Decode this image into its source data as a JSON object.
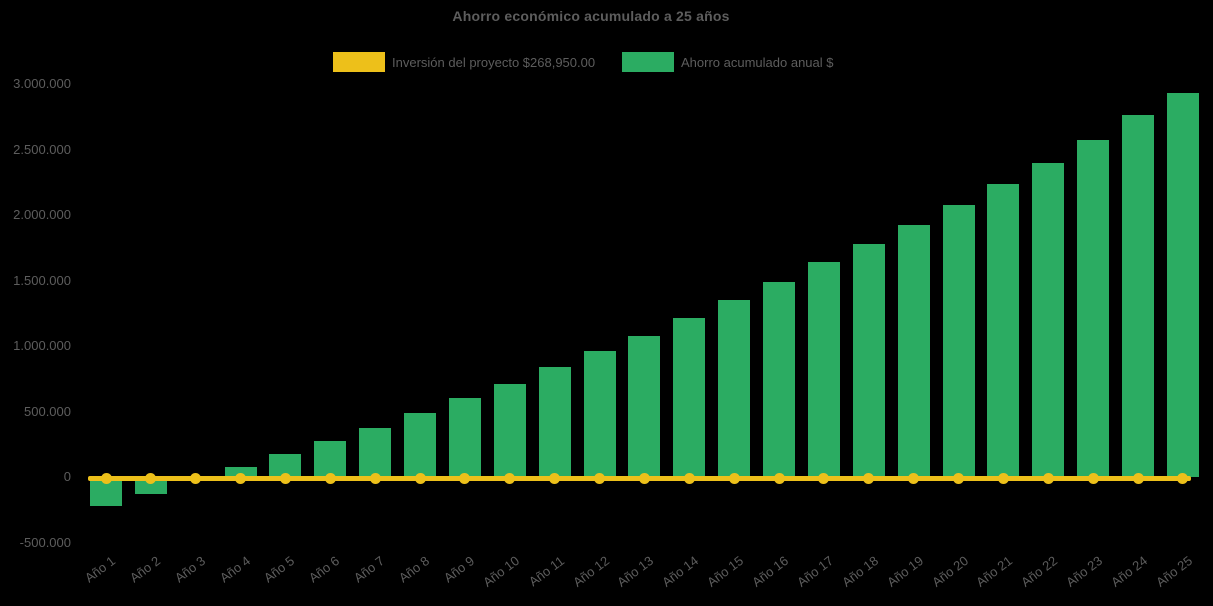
{
  "chart_data": {
    "type": "bar",
    "title": "Ahorro económico acumulado a 25 años",
    "categories": [
      "Año 1",
      "Año 2",
      "Año 3",
      "Año 4",
      "Año 5",
      "Año 6",
      "Año 7",
      "Año 8",
      "Año 9",
      "Año 10",
      "Año 11",
      "Año 12",
      "Año 13",
      "Año 14",
      "Año 15",
      "Año 16",
      "Año 17",
      "Año 18",
      "Año 19",
      "Año 20",
      "Año 21",
      "Año 22",
      "Año 23",
      "Año 24",
      "Año 25"
    ],
    "series": [
      {
        "name": "Inversión del proyecto $268,950.00",
        "type": "line",
        "color": "#edc01a",
        "marker": "circle",
        "plotted_value": 0,
        "stated_value_label": "$268,950.00"
      },
      {
        "name": "Ahorro acumulado anual $",
        "type": "bar",
        "color": "#2bac62",
        "values": [
          -215000,
          -130000,
          -25000,
          80000,
          180000,
          280000,
          380000,
          490000,
          605000,
          715000,
          840000,
          965000,
          1080000,
          1215000,
          1350000,
          1490000,
          1645000,
          1780000,
          1925000,
          2080000,
          2240000,
          2400000,
          2575000,
          2765000,
          2935000
        ]
      }
    ],
    "xlabel": "",
    "ylabel": "",
    "ylim": [
      -500000,
      3000000
    ],
    "y_ticks": [
      {
        "label": "3.000.000",
        "value": 3000000
      },
      {
        "label": "2.500.000",
        "value": 2500000
      },
      {
        "label": "2.000.000",
        "value": 2000000
      },
      {
        "label": "1.500.000",
        "value": 1500000
      },
      {
        "label": "1.000.000",
        "value": 1000000
      },
      {
        "label": "500.000",
        "value": 500000
      },
      {
        "label": "0",
        "value": 0
      },
      {
        "label": "-500.000",
        "value": -500000
      }
    ],
    "grid": "off",
    "legend_position": "top-center",
    "background_color": "#000000",
    "text_color": "#5d5d5d"
  }
}
